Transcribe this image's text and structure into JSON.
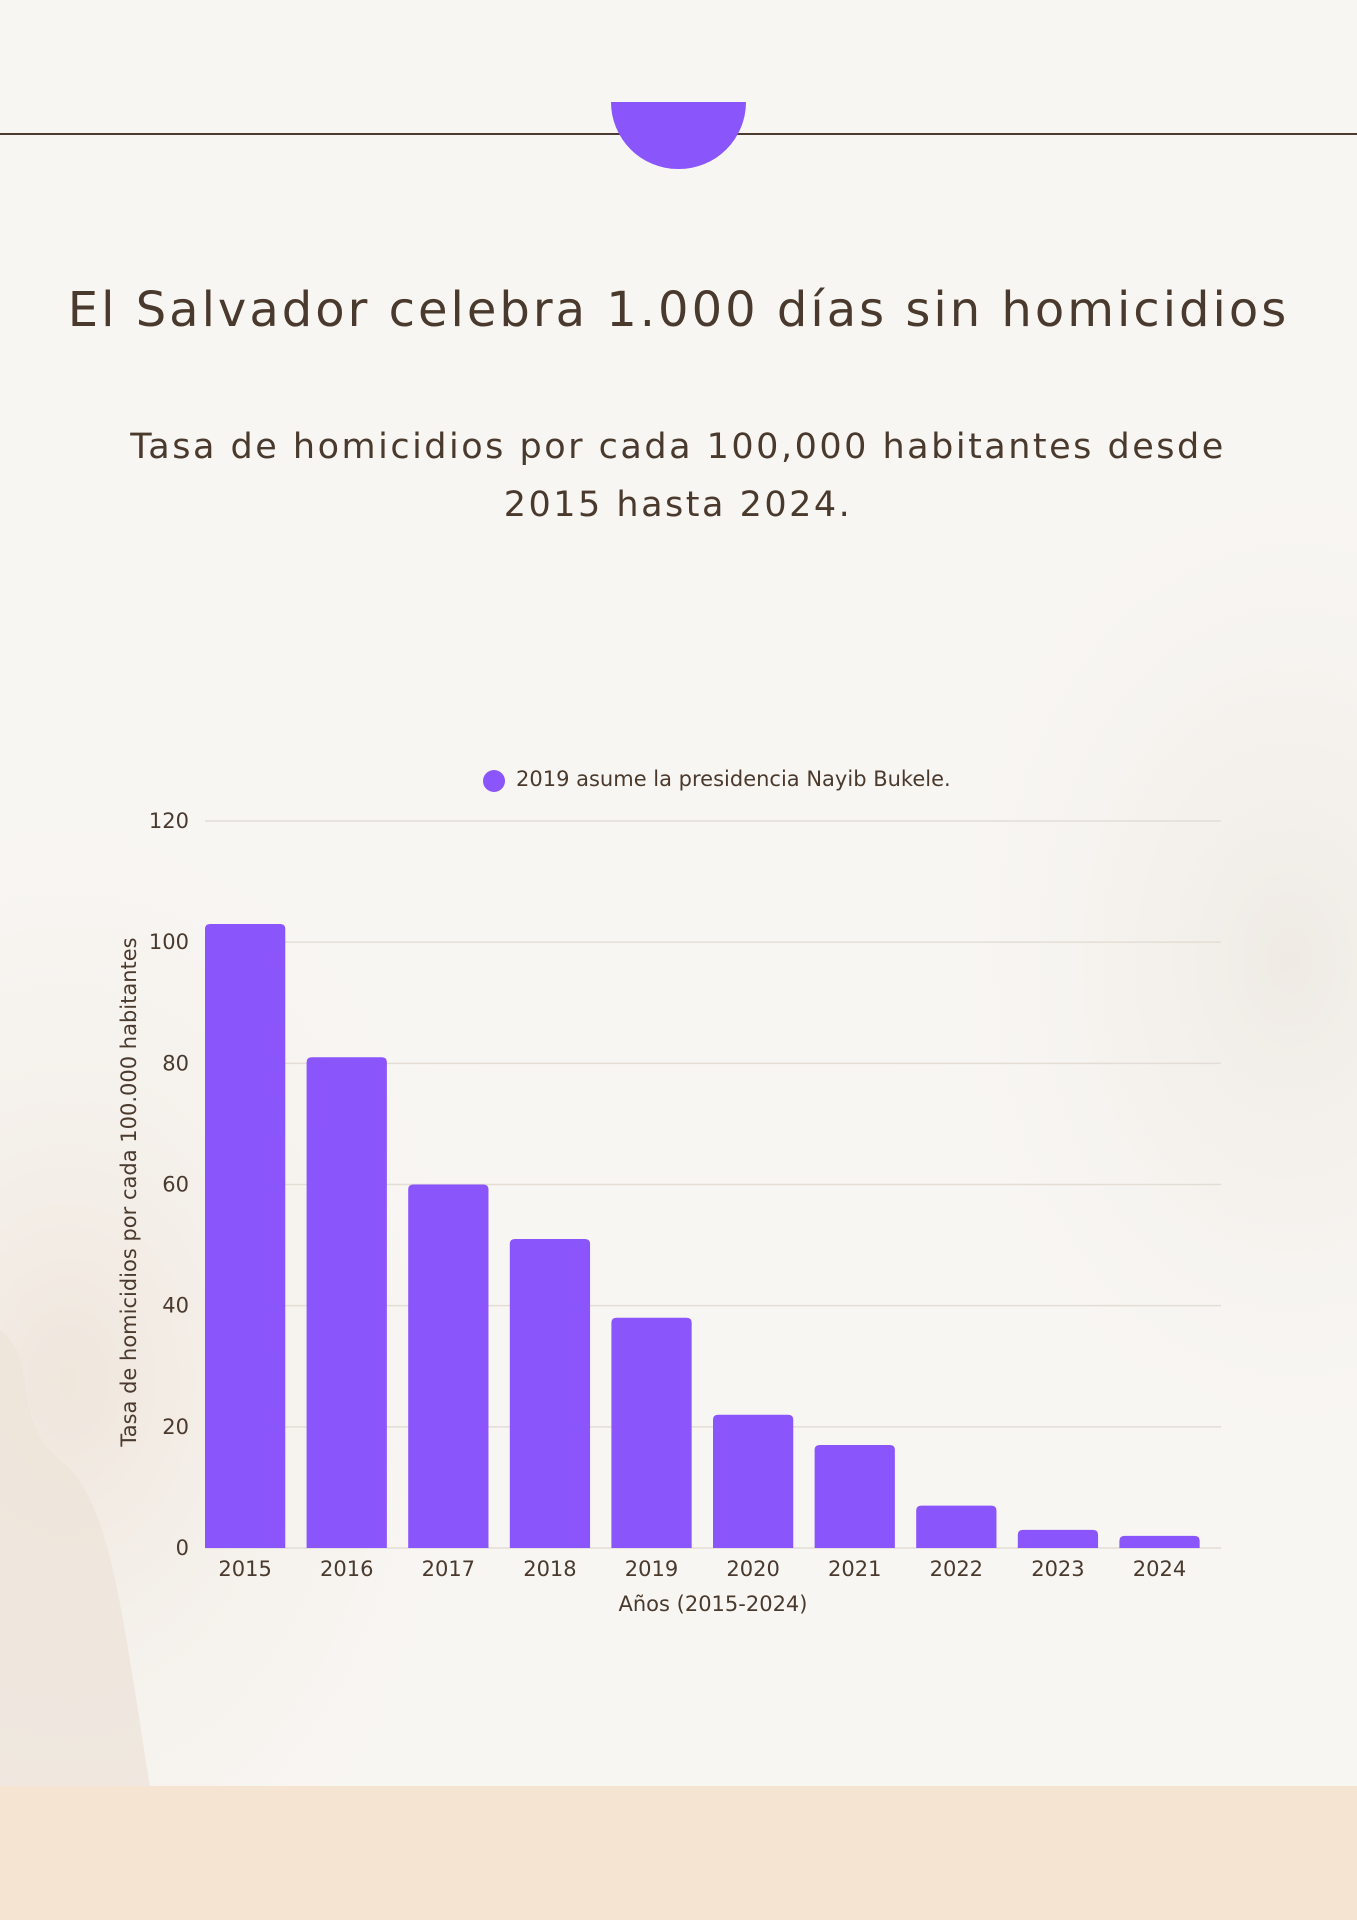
{
  "header": {
    "title": "El Salvador celebra 1.000 días sin homicidios",
    "subtitle": "Tasa de homicidios por cada 100,000 habitantes desde 2015 hasta 2024."
  },
  "colors": {
    "accent": "#8b55fc",
    "text": "#4a3a2e",
    "background": "#f8f6f3",
    "footer_band": "#f6e4d3"
  },
  "chart_data": {
    "type": "bar",
    "categories": [
      "2015",
      "2016",
      "2017",
      "2018",
      "2019",
      "2020",
      "2021",
      "2022",
      "2023",
      "2024"
    ],
    "series": [
      {
        "name": "2019 asume la presidencia Nayib Bukele.",
        "values": [
          103,
          81,
          60,
          51,
          38,
          22,
          17,
          7,
          3,
          2
        ],
        "color": "#8b55fc"
      }
    ],
    "xlabel": "Años (2015-2024)",
    "ylabel": "Tasa de homicidios por cada 100.000 habitantes",
    "ylim": [
      0,
      120
    ],
    "yticks": [
      0,
      20,
      40,
      60,
      80,
      100,
      120
    ],
    "grid": true,
    "legend_position": "top"
  }
}
